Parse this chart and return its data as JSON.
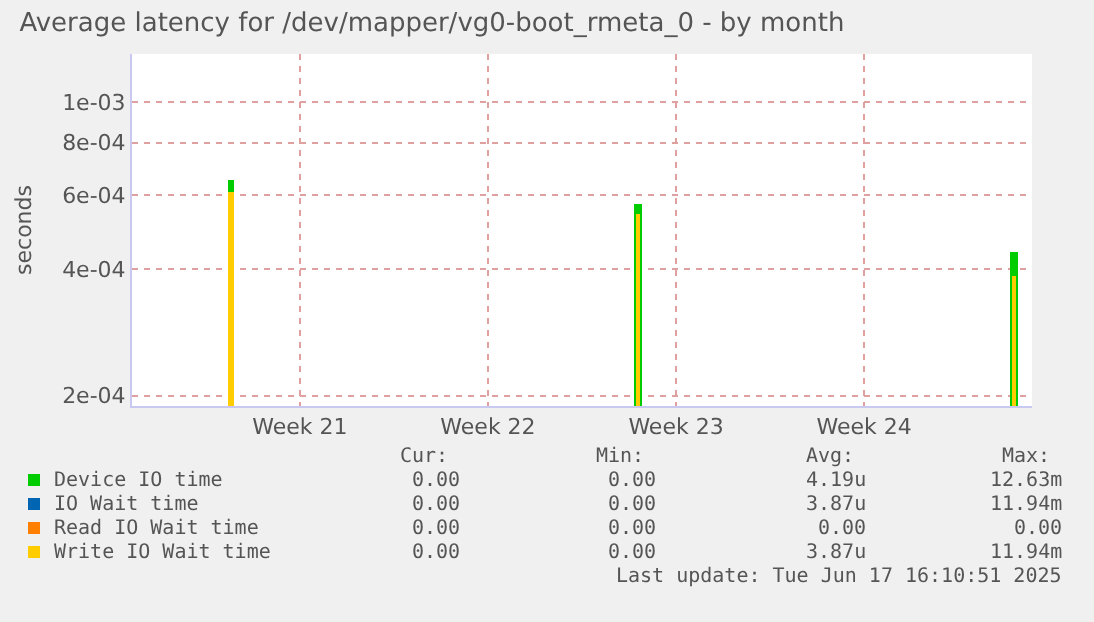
{
  "chart_data": {
    "type": "bar",
    "title": "Average latency for /dev/mapper/vg0-boot_rmeta_0 - by month",
    "ylabel": "seconds",
    "x": [
      "2025-05-18T21:00",
      "2025-06-03T00:15",
      "2025-06-17T00:10"
    ],
    "series": [
      {
        "name": "Device IO time",
        "color": "#00cc00",
        "values": [
          0.00065,
          0.00057,
          0.00044
        ]
      },
      {
        "name": "IO Wait time",
        "color": "#0066b3",
        "values": [
          null,
          null,
          null
        ]
      },
      {
        "name": "Read IO Wait time",
        "color": "#ff8000",
        "values": [
          null,
          null,
          null
        ]
      },
      {
        "name": "Write IO Wait time",
        "color": "#ffcc00",
        "values": [
          0.00061,
          0.00054,
          0.000385
        ]
      }
    ],
    "log": true,
    "ylim": [
      0.000189,
      0.0013
    ],
    "yticks": [
      {
        "value": 0.0002,
        "label": "2e-04"
      },
      {
        "value": 0.0004,
        "label": "4e-04"
      },
      {
        "value": 0.0006,
        "label": "6e-04"
      },
      {
        "value": 0.0008,
        "label": "8e-04"
      },
      {
        "value": 0.001,
        "label": "1e-03"
      }
    ],
    "xlim": [
      "2025-05-15T04:00",
      "2025-06-17T16:00"
    ],
    "xticks": [
      {
        "value": "2025-05-21T10:00",
        "label": "Week 21"
      },
      {
        "value": "2025-05-28T10:00",
        "label": "Week 22"
      },
      {
        "value": "2025-06-04T10:00",
        "label": "Week 23"
      },
      {
        "value": "2025-06-11T10:00",
        "label": "Week 24"
      }
    ],
    "grid": true,
    "legend": "bottom",
    "annotations": [
      "Cur:",
      "Min:",
      "Avg:",
      "Max:",
      "0.00",
      "0.00",
      "4.19u",
      "12.63m",
      "0.00",
      "0.00",
      "3.87u",
      "11.94m",
      "0.00",
      "0.00",
      "0.00",
      "0.00",
      "0.00",
      "0.00",
      "3.87u",
      "11.94m",
      "Last update: Tue Jun 17 16:10:51 2025"
    ]
  }
}
